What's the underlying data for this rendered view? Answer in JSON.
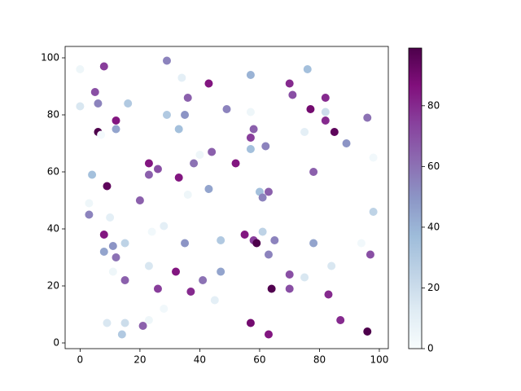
{
  "chart_data": {
    "type": "scatter",
    "x": [
      0,
      8,
      29,
      34,
      57,
      76,
      0,
      5,
      6,
      16,
      36,
      43,
      70,
      71,
      82,
      12,
      6,
      7,
      12,
      29,
      35,
      33,
      49,
      57,
      58,
      77,
      82,
      96,
      82,
      85,
      75,
      89,
      57,
      57,
      62,
      98,
      23,
      26,
      23,
      38,
      40,
      44,
      4,
      9,
      33,
      52,
      36,
      43,
      60,
      63,
      61,
      78,
      3,
      20,
      3,
      10,
      98,
      28,
      24,
      61,
      8,
      55,
      58,
      59,
      65,
      47,
      35,
      15,
      78,
      94,
      11,
      8,
      12,
      63,
      97,
      23,
      11,
      32,
      47,
      84,
      70,
      75,
      15,
      41,
      26,
      37,
      64,
      70,
      83,
      45,
      28,
      23,
      21,
      9,
      15,
      57,
      87,
      14,
      63,
      96
    ],
    "y": [
      96,
      97,
      99,
      93,
      94,
      96,
      83,
      88,
      84,
      84,
      86,
      91,
      91,
      87,
      86,
      78,
      74,
      73,
      75,
      80,
      80,
      75,
      82,
      81,
      75,
      82,
      81,
      79,
      78,
      74,
      74,
      70,
      72,
      68,
      69,
      65,
      63,
      61,
      59,
      63,
      66,
      67,
      59,
      55,
      58,
      63,
      52,
      54,
      53,
      53,
      51,
      60,
      49,
      50,
      45,
      44,
      46,
      41,
      39,
      39,
      38,
      38,
      36,
      35,
      36,
      36,
      35,
      35,
      35,
      35,
      34,
      32,
      30,
      31,
      31,
      27,
      25,
      25,
      25,
      27,
      24,
      23,
      22,
      22,
      19,
      18,
      19,
      19,
      17,
      15,
      12,
      8,
      6,
      7,
      7,
      7,
      8,
      3,
      3,
      4
    ],
    "c": [
      5,
      75,
      55,
      10,
      40,
      35,
      15,
      70,
      55,
      30,
      65,
      85,
      80,
      70,
      80,
      85,
      99,
      2,
      45,
      30,
      50,
      35,
      55,
      5,
      65,
      90,
      20,
      60,
      80,
      95,
      10,
      50,
      75,
      35,
      55,
      3,
      85,
      70,
      65,
      60,
      5,
      65,
      35,
      95,
      85,
      85,
      5,
      45,
      35,
      65,
      55,
      65,
      5,
      65,
      55,
      10,
      25,
      10,
      3,
      25,
      85,
      85,
      75,
      99,
      55,
      30,
      50,
      25,
      45,
      3,
      50,
      45,
      60,
      55,
      70,
      15,
      5,
      85,
      45,
      15,
      70,
      15,
      65,
      60,
      75,
      80,
      98,
      70,
      80,
      10,
      3,
      5,
      65,
      15,
      20,
      90,
      80,
      30,
      85,
      99
    ],
    "colormap": "BuPu",
    "clim": [
      0,
      99
    ],
    "cticks": [
      0,
      20,
      40,
      60,
      80
    ],
    "xlim": [
      -5,
      103
    ],
    "xticks": [
      0,
      20,
      40,
      60,
      80,
      100
    ],
    "ylim": [
      -2,
      104
    ],
    "yticks": [
      0,
      20,
      40,
      60,
      80,
      100
    ]
  }
}
